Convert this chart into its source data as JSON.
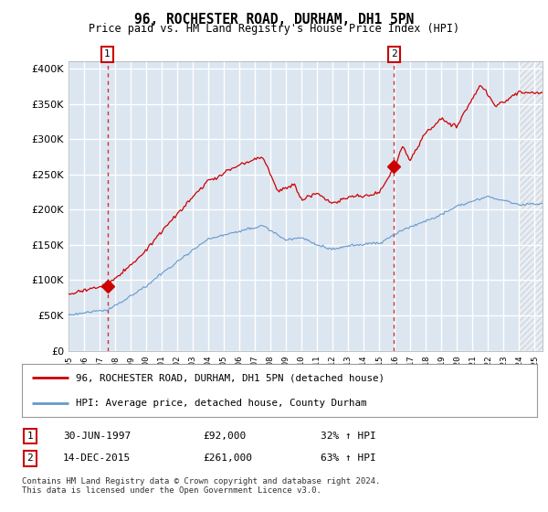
{
  "title": "96, ROCHESTER ROAD, DURHAM, DH1 5PN",
  "subtitle": "Price paid vs. HM Land Registry's House Price Index (HPI)",
  "legend_line1": "96, ROCHESTER ROAD, DURHAM, DH1 5PN (detached house)",
  "legend_line2": "HPI: Average price, detached house, County Durham",
  "annotation1_date": "30-JUN-1997",
  "annotation1_price": "£92,000",
  "annotation1_hpi": "32% ↑ HPI",
  "annotation2_date": "14-DEC-2015",
  "annotation2_price": "£261,000",
  "annotation2_hpi": "63% ↑ HPI",
  "footer": "Contains HM Land Registry data © Crown copyright and database right 2024.\nThis data is licensed under the Open Government Licence v3.0.",
  "red_color": "#cc0000",
  "blue_color": "#6699cc",
  "plot_bg_color": "#dce6f1",
  "grid_color": "#ffffff",
  "ann_box_color": "#cc0000",
  "ylim": [
    0,
    410000
  ],
  "yticks": [
    0,
    50000,
    100000,
    150000,
    200000,
    250000,
    300000,
    350000,
    400000
  ],
  "sale1_x": 1997.5,
  "sale1_y": 92000,
  "sale2_x": 2015.95,
  "sale2_y": 261000,
  "xmin": 1995.0,
  "xmax": 2025.5
}
